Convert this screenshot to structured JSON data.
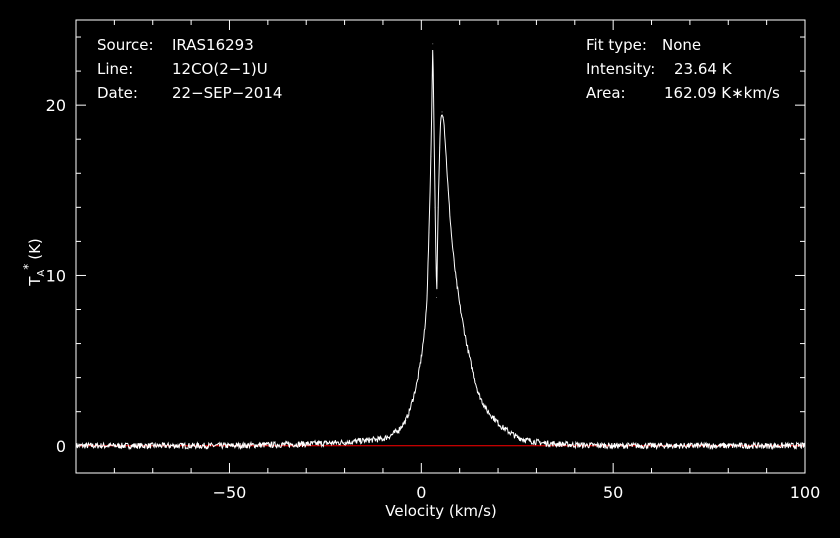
{
  "chart_data": {
    "type": "line",
    "xlabel": "Velocity (km/s)",
    "ylabel": "T",
    "ylabel_sub": "A",
    "ylabel_sup": "*",
    "ylabel_unit": "(K)",
    "xlim": [
      -90,
      100
    ],
    "ylim": [
      -1.6,
      25
    ],
    "x_ticks": [
      {
        "value": -50,
        "label": "−50"
      },
      {
        "value": 0,
        "label": "0"
      },
      {
        "value": 50,
        "label": "50"
      },
      {
        "value": 100,
        "label": "100"
      }
    ],
    "y_ticks": [
      {
        "value": 0,
        "label": "0"
      },
      {
        "value": 10,
        "label": "10"
      },
      {
        "value": 20,
        "label": "20"
      }
    ],
    "grid": false,
    "baseline": 0,
    "colors": {
      "spectrum": "#ffffff",
      "baseline": "#ff0000",
      "frame": "#ffffff",
      "background": "#000000"
    },
    "series": [
      {
        "x": [
          -90,
          -80,
          -70,
          -60,
          -50,
          -40,
          -30,
          -20,
          -15,
          -10,
          -8,
          -6,
          -4,
          -3,
          -2,
          -1,
          0,
          1,
          1.5,
          2,
          2.5,
          3,
          3.2,
          3.6,
          4,
          4.4,
          4.8,
          5,
          5.4,
          5.8,
          6.2,
          6.6,
          7,
          7.5,
          8,
          8.5,
          9,
          10,
          11,
          12,
          13,
          14,
          15,
          17,
          19,
          21,
          23,
          25,
          28,
          32,
          40,
          50,
          60,
          70,
          80,
          90,
          100
        ],
        "y": [
          0.0,
          0.0,
          0.0,
          0.0,
          0.0,
          0.05,
          0.1,
          0.2,
          0.3,
          0.4,
          0.6,
          0.9,
          1.5,
          2.1,
          2.9,
          3.8,
          5.2,
          7.0,
          8.8,
          12.5,
          17.0,
          23.6,
          20.5,
          14.0,
          8.7,
          14.0,
          17.5,
          19.0,
          19.6,
          19.3,
          18.0,
          16.5,
          15.0,
          13.4,
          12.0,
          10.9,
          9.9,
          8.3,
          7.0,
          5.8,
          4.8,
          3.8,
          3.0,
          2.1,
          1.6,
          1.1,
          0.8,
          0.5,
          0.3,
          0.15,
          0.05,
          0.0,
          0.0,
          0.0,
          0.0,
          0.0,
          0.0
        ]
      }
    ]
  },
  "header": {
    "left": [
      {
        "key": "Source:",
        "value": "IRAS16293"
      },
      {
        "key": "Line:",
        "value": "12CO(2−1)U"
      },
      {
        "key": "Date:",
        "value": "22−SEP−2014"
      }
    ],
    "right": [
      {
        "key": "Fit type:",
        "value": "None"
      },
      {
        "key": "Intensity:",
        "value": "23.64 K"
      },
      {
        "key": "Area:",
        "value": "162.09 K∗km/s"
      }
    ]
  }
}
